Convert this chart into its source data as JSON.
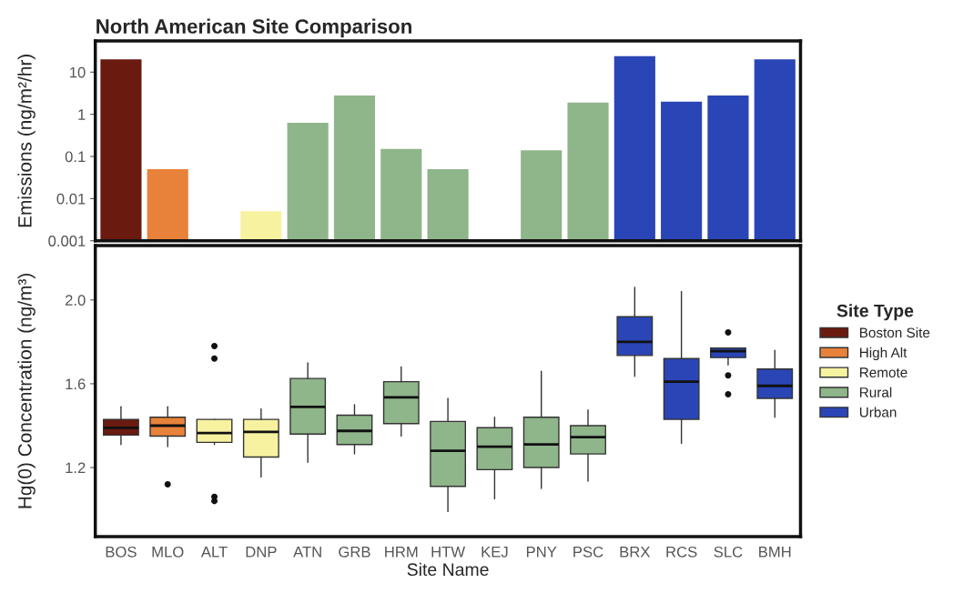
{
  "chart_data": [
    {
      "type": "bar",
      "title": "North American Site Comparison",
      "ylabel": "Emissions (ng/m²/hr)",
      "categories": [
        null,
        null,
        null,
        null,
        null,
        null,
        null,
        null,
        null,
        null,
        null,
        null,
        null,
        null,
        null
      ],
      "values": [
        20,
        0.05,
        null,
        0.005,
        0.63,
        2.8,
        0.15,
        0.05,
        null,
        0.14,
        1.9,
        24,
        2.0,
        2.8,
        20
      ],
      "colors": [
        "#6b1a10",
        "#e8823a",
        "#f7f2a0",
        "#f7f2a0",
        "#8fb58a",
        "#8fb58a",
        "#8fb58a",
        "#8fb58a",
        "#8fb58a",
        "#8fb58a",
        "#8fb58a",
        "#2a45b5",
        "#2a45b5",
        "#2a45b5",
        "#2a45b5"
      ],
      "log": true,
      "ylim": [
        0.001,
        55
      ],
      "yticks": [
        0.001,
        0.01,
        0.1,
        1,
        10
      ],
      "tick_labels": "y",
      "grid": false
    },
    {
      "type": "box",
      "xlabel": "Site Name",
      "ylabel": "Hg(0) Concentration (ng/m³)",
      "legend_title": "Site Type",
      "legend": "right",
      "grid": false,
      "categories": [
        "BOS",
        "MLO",
        "ALT",
        "DNP",
        "ATN",
        "GRB",
        "HRM",
        "HTW",
        "KEJ",
        "PNY",
        "PSC",
        "BRX",
        "RCS",
        "SLC",
        "BMH"
      ],
      "ylim": [
        0.87,
        2.26
      ],
      "yticks": [
        {
          "value": 1.2,
          "label": "1.2"
        },
        {
          "value": 1.6,
          "label": "1.6"
        },
        {
          "value": 2.0,
          "label": "2.0"
        }
      ],
      "series": [
        {
          "name": "Boston Site",
          "color": "#6b1a10",
          "boxes": [
            {
              "low": 1.31,
              "q1": 1.355,
              "median": 1.39,
              "q3": 1.43,
              "high": 1.49
            },
            null,
            null,
            null,
            null,
            null,
            null,
            null,
            null,
            null,
            null,
            null,
            null,
            null,
            null
          ]
        },
        {
          "name": "High Alt",
          "color": "#e8823a",
          "boxes": [
            null,
            {
              "low": 1.3,
              "q1": 1.35,
              "median": 1.4,
              "q3": 1.44,
              "high": 1.49,
              "outliers": [
                1.12
              ]
            },
            null,
            null,
            null,
            null,
            null,
            null,
            null,
            null,
            null,
            null,
            null,
            null,
            null
          ]
        },
        {
          "name": "Remote",
          "color": "#f7f2a0",
          "boxes": [
            null,
            null,
            {
              "low": 1.31,
              "q1": 1.32,
              "median": 1.365,
              "q3": 1.43,
              "high": 1.43,
              "outliers": [
                1.78,
                1.72,
                1.06,
                1.04
              ]
            },
            {
              "low": 1.155,
              "q1": 1.25,
              "median": 1.37,
              "q3": 1.43,
              "high": 1.48
            },
            null,
            null,
            null,
            null,
            null,
            null,
            null,
            null,
            null,
            null,
            null
          ]
        },
        {
          "name": "Rural",
          "color": "#8fb58a",
          "boxes": [
            null,
            null,
            null,
            null,
            {
              "low": 1.225,
              "q1": 1.36,
              "median": 1.49,
              "q3": 1.625,
              "high": 1.7
            },
            {
              "low": 1.265,
              "q1": 1.31,
              "median": 1.375,
              "q3": 1.45,
              "high": 1.5
            },
            {
              "low": 1.35,
              "q1": 1.41,
              "median": 1.535,
              "q3": 1.61,
              "high": 1.68
            },
            {
              "low": 0.99,
              "q1": 1.11,
              "median": 1.28,
              "q3": 1.42,
              "high": 1.53
            },
            {
              "low": 1.05,
              "q1": 1.19,
              "median": 1.3,
              "q3": 1.39,
              "high": 1.44
            },
            {
              "low": 1.1,
              "q1": 1.2,
              "median": 1.31,
              "q3": 1.44,
              "high": 1.66
            },
            {
              "low": 1.135,
              "q1": 1.265,
              "median": 1.345,
              "q3": 1.4,
              "high": 1.475
            },
            null,
            null,
            null,
            null
          ]
        },
        {
          "name": "Urban",
          "color": "#2a45b5",
          "boxes": [
            null,
            null,
            null,
            null,
            null,
            null,
            null,
            null,
            null,
            null,
            null,
            {
              "low": 1.635,
              "q1": 1.735,
              "median": 1.8,
              "q3": 1.92,
              "high": 2.06
            },
            {
              "low": 1.315,
              "q1": 1.43,
              "median": 1.61,
              "q3": 1.72,
              "high": 2.04
            },
            {
              "low": 1.69,
              "q1": 1.725,
              "median": 1.755,
              "q3": 1.77,
              "high": 1.77,
              "outliers": [
                1.845,
                1.64,
                1.55
              ]
            },
            {
              "low": 1.44,
              "q1": 1.53,
              "median": 1.59,
              "q3": 1.67,
              "high": 1.76
            }
          ]
        }
      ]
    }
  ]
}
